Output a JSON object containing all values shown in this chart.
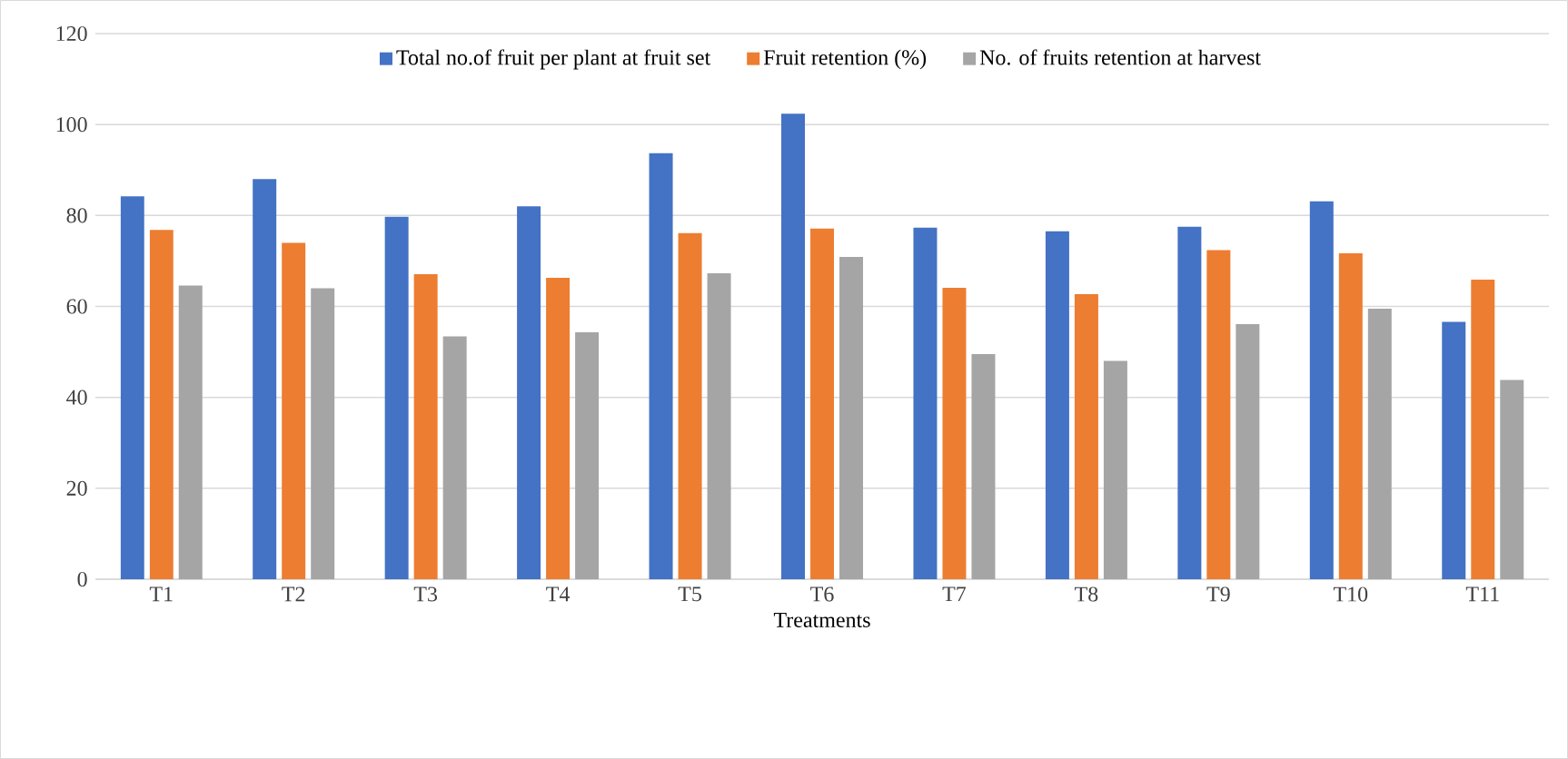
{
  "chart_data": {
    "type": "bar",
    "xlabel": "Treatments",
    "categories": [
      "T1",
      "T2",
      "T3",
      "T4",
      "T5",
      "T6",
      "T7",
      "T8",
      "T9",
      "T10",
      "T11"
    ],
    "series": [
      {
        "name": "Total no.of fruit per plant at fruit set",
        "color": "#4472c4",
        "values": [
          84.2,
          88.0,
          79.7,
          82.0,
          93.7,
          102.4,
          77.3,
          76.5,
          77.5,
          83.1,
          56.6
        ]
      },
      {
        "name": "Fruit retention (%)",
        "color": "#ed7d31",
        "values": [
          76.8,
          74.0,
          67.1,
          66.3,
          76.1,
          77.1,
          64.1,
          62.7,
          72.4,
          71.7,
          65.9
        ]
      },
      {
        "name": "No. of fruits retention at harvest",
        "color": "#a5a5a5",
        "values": [
          64.6,
          64.0,
          53.4,
          54.3,
          67.3,
          70.9,
          49.5,
          48.0,
          56.1,
          59.5,
          43.8
        ]
      }
    ],
    "ylim": [
      0,
      120
    ],
    "yticks": [
      0,
      20,
      40,
      60,
      80,
      100,
      120
    ],
    "grid": "y",
    "legend": "top"
  }
}
